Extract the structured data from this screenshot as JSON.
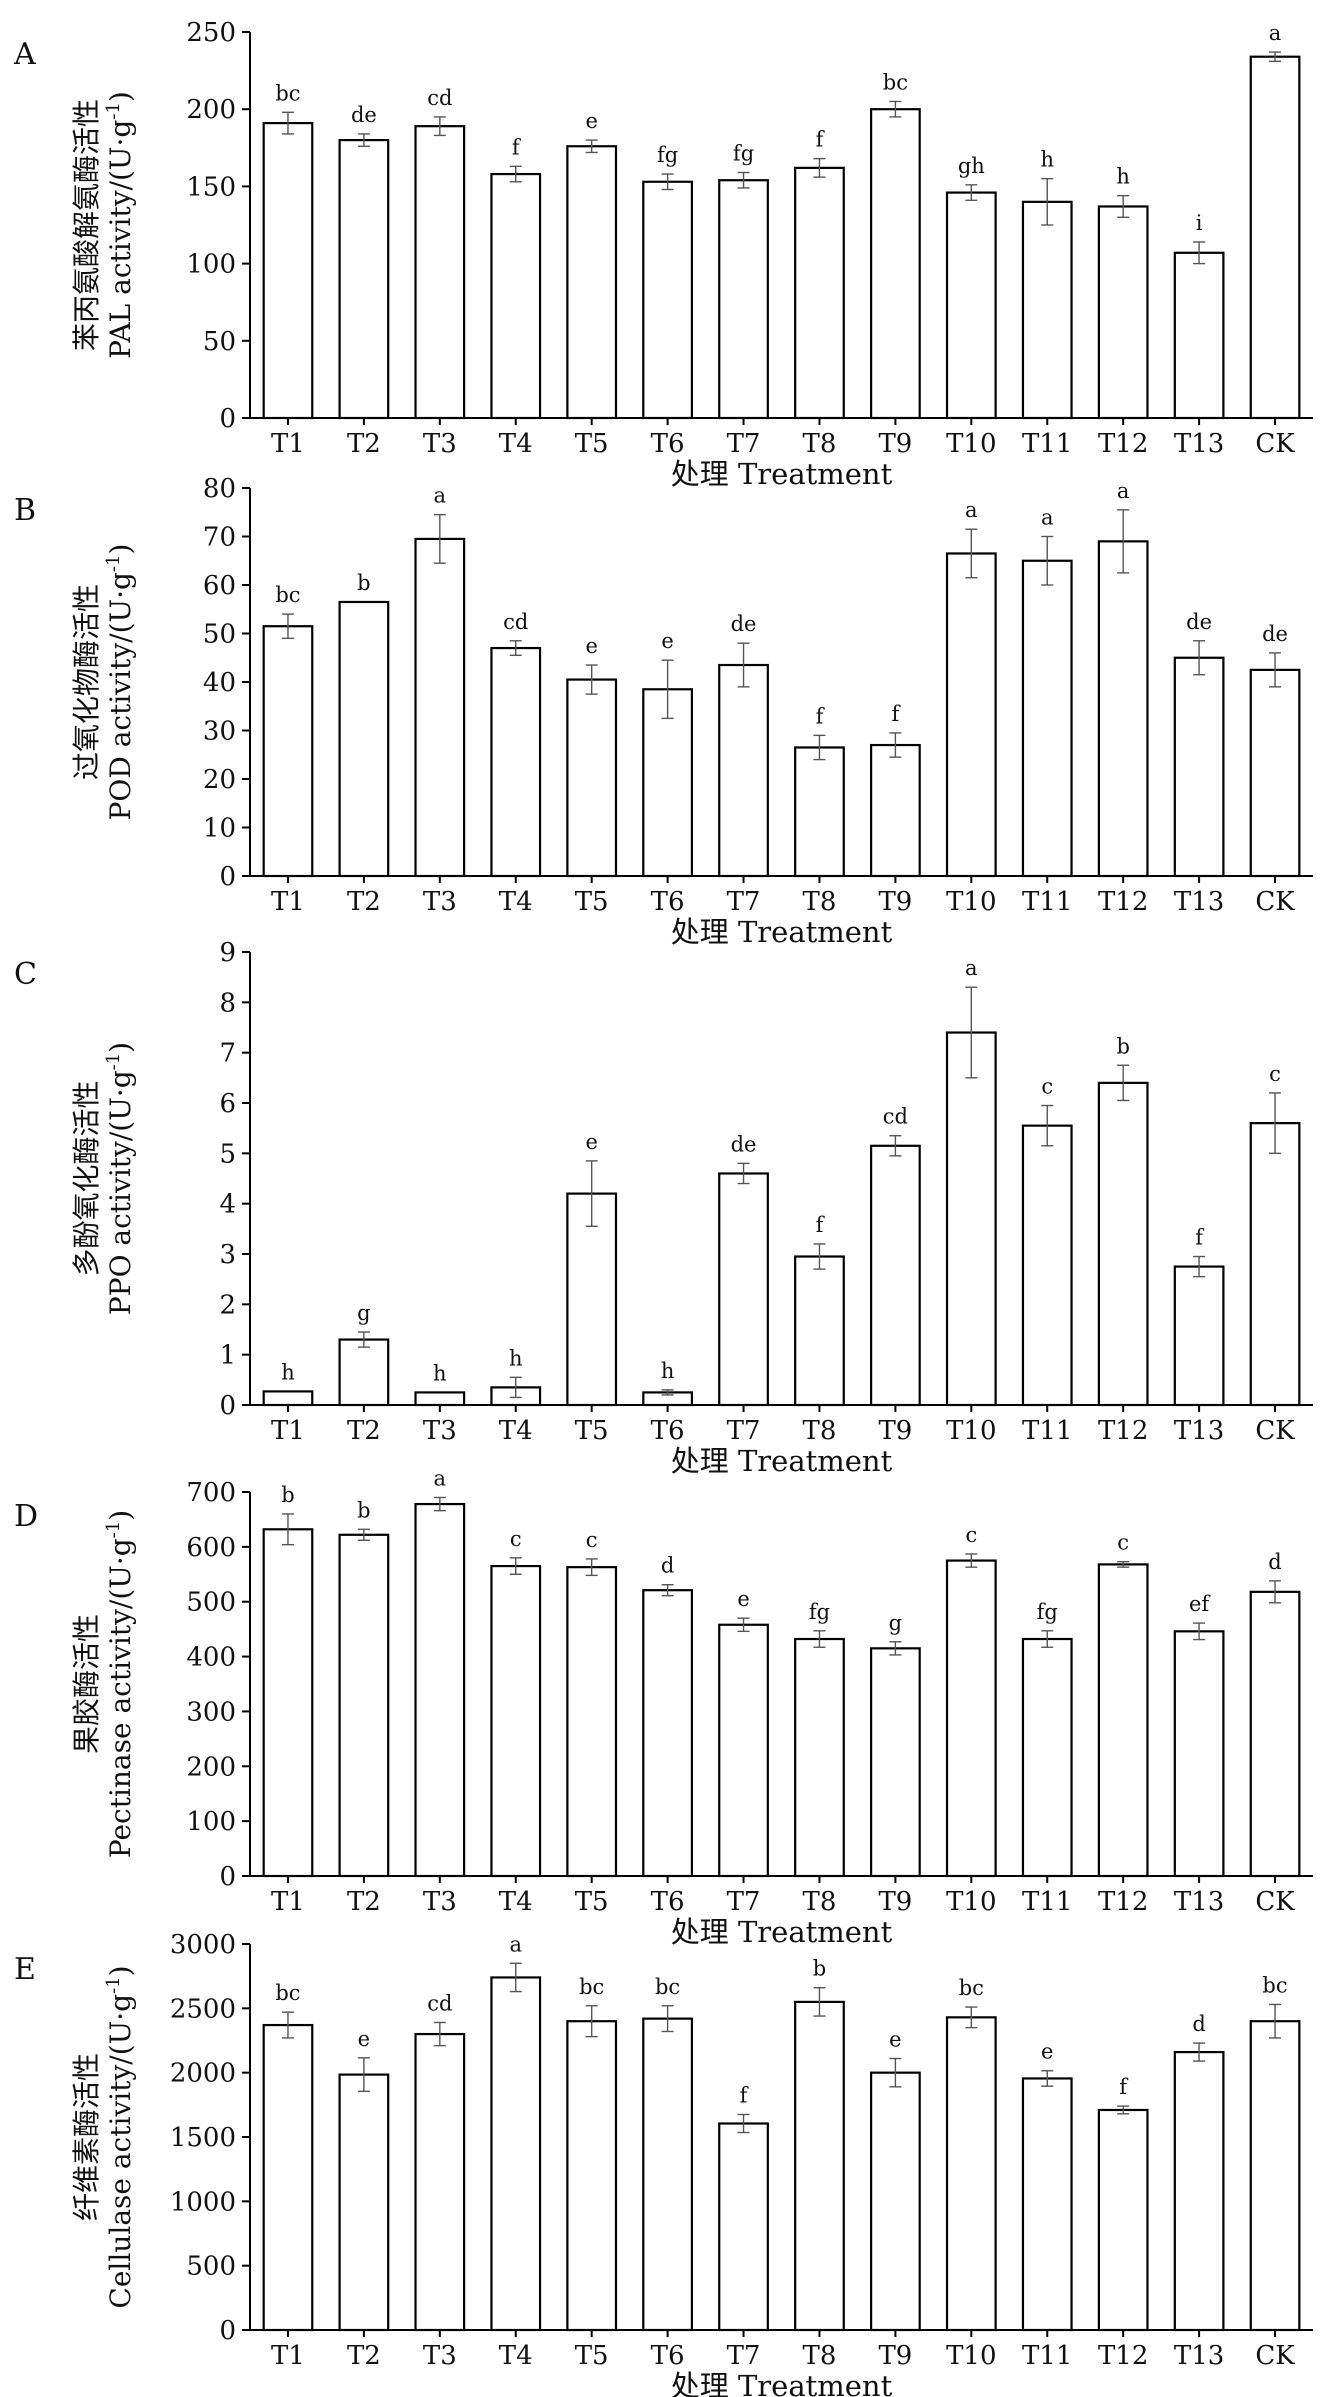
{
  "chart_data": [
    {
      "type": "bar",
      "panel": "A",
      "categories": [
        "T1",
        "T2",
        "T3",
        "T4",
        "T5",
        "T6",
        "T7",
        "T8",
        "T9",
        "T10",
        "T11",
        "T12",
        "T13",
        "CK"
      ],
      "values": [
        191,
        180,
        189,
        158,
        176,
        153,
        154,
        162,
        200,
        146,
        140,
        137,
        107,
        234
      ],
      "errors": [
        7,
        4,
        6,
        5,
        4,
        5,
        5,
        6,
        5,
        5,
        15,
        7,
        7,
        3
      ],
      "sig_letters": [
        "bc",
        "de",
        "cd",
        "f",
        "e",
        "fg",
        "fg",
        "f",
        "bc",
        "gh",
        "h",
        "h",
        "i",
        "a"
      ],
      "ylabel_cn": "苯丙氨酸解氨酶活性",
      "ylabel_en": "PAL activity/(U·g",
      "ylabel_sup": "-1",
      "ylabel_close": ")",
      "xlabel": "处理 Treatment",
      "ylim": [
        0,
        250
      ],
      "yticks": [
        0,
        50,
        100,
        150,
        200,
        250
      ]
    },
    {
      "type": "bar",
      "panel": "B",
      "categories": [
        "T1",
        "T2",
        "T3",
        "T4",
        "T5",
        "T6",
        "T7",
        "T8",
        "T9",
        "T10",
        "T11",
        "T12",
        "T13",
        "CK"
      ],
      "values": [
        51.5,
        56.5,
        69.5,
        47,
        40.5,
        38.5,
        43.5,
        26.5,
        27,
        66.5,
        65,
        69,
        45,
        42.5
      ],
      "errors": [
        2.5,
        0,
        5,
        1.5,
        3,
        6,
        4.5,
        2.5,
        2.5,
        5,
        5,
        6.5,
        3.5,
        3.5
      ],
      "sig_letters": [
        "bc",
        "b",
        "a",
        "cd",
        "e",
        "e",
        "de",
        "f",
        "f",
        "a",
        "a",
        "a",
        "de",
        "de"
      ],
      "ylabel_cn": "过氧化物酶活性",
      "ylabel_en": "POD activity/(U·g",
      "ylabel_sup": "-1",
      "ylabel_close": ")",
      "xlabel": "处理 Treatment",
      "ylim": [
        0,
        80
      ],
      "yticks": [
        0,
        10,
        20,
        30,
        40,
        50,
        60,
        70,
        80
      ]
    },
    {
      "type": "bar",
      "panel": "C",
      "categories": [
        "T1",
        "T2",
        "T3",
        "T4",
        "T5",
        "T6",
        "T7",
        "T8",
        "T9",
        "T10",
        "T11",
        "T12",
        "T13",
        "CK"
      ],
      "values": [
        0.27,
        1.3,
        0.25,
        0.35,
        4.2,
        0.25,
        4.6,
        2.95,
        5.15,
        7.4,
        5.55,
        6.4,
        2.75,
        5.6
      ],
      "errors": [
        0,
        0.15,
        0,
        0.2,
        0.65,
        0.05,
        0.2,
        0.25,
        0.2,
        0.9,
        0.4,
        0.35,
        0.2,
        0.6
      ],
      "sig_letters": [
        "h",
        "g",
        "h",
        "h",
        "e",
        "h",
        "de",
        "f",
        "cd",
        "a",
        "c",
        "b",
        "f",
        "c"
      ],
      "ylabel_cn": "多酚氧化酶活性",
      "ylabel_en": "PPO activity/(U·g",
      "ylabel_sup": "-1",
      "ylabel_close": ")",
      "xlabel": "处理 Treatment",
      "ylim": [
        0,
        9
      ],
      "yticks": [
        0,
        1,
        2,
        3,
        4,
        5,
        6,
        7,
        8,
        9
      ]
    },
    {
      "type": "bar",
      "panel": "D",
      "categories": [
        "T1",
        "T2",
        "T3",
        "T4",
        "T5",
        "T6",
        "T7",
        "T8",
        "T9",
        "T10",
        "T11",
        "T12",
        "T13",
        "CK"
      ],
      "values": [
        632,
        622,
        678,
        565,
        563,
        521,
        458,
        432,
        415,
        575,
        432,
        568,
        446,
        518
      ],
      "errors": [
        28,
        10,
        12,
        15,
        15,
        10,
        12,
        15,
        12,
        12,
        15,
        5,
        15,
        20
      ],
      "sig_letters": [
        "b",
        "b",
        "a",
        "c",
        "c",
        "d",
        "e",
        "fg",
        "g",
        "c",
        "fg",
        "c",
        "ef",
        "d"
      ],
      "ylabel_cn": "果胶酶活性",
      "ylabel_en": "Pectinase activity/(U·g",
      "ylabel_sup": "-1",
      "ylabel_close": ")",
      "xlabel": "处理 Treatment",
      "ylim": [
        0,
        700
      ],
      "yticks": [
        0,
        100,
        200,
        300,
        400,
        500,
        600,
        700
      ]
    },
    {
      "type": "bar",
      "panel": "E",
      "categories": [
        "T1",
        "T2",
        "T3",
        "T4",
        "T5",
        "T6",
        "T7",
        "T8",
        "T9",
        "T10",
        "T11",
        "T12",
        "T13",
        "CK"
      ],
      "values": [
        2370,
        1985,
        2300,
        2740,
        2400,
        2420,
        1605,
        2550,
        2000,
        2430,
        1955,
        1710,
        2160,
        2400
      ],
      "errors": [
        100,
        130,
        90,
        110,
        120,
        100,
        70,
        110,
        110,
        80,
        60,
        30,
        70,
        130
      ],
      "sig_letters": [
        "bc",
        "e",
        "cd",
        "a",
        "bc",
        "bc",
        "f",
        "b",
        "e",
        "bc",
        "e",
        "f",
        "d",
        "bc"
      ],
      "ylabel_cn": "纤维素酶活性",
      "ylabel_en": "Cellulase activity/(U·g",
      "ylabel_sup": "-1",
      "ylabel_close": ")",
      "xlabel": "处理 Treatment",
      "ylim": [
        0,
        3000
      ],
      "yticks": [
        0,
        500,
        1000,
        1500,
        2000,
        2500,
        3000
      ]
    }
  ]
}
